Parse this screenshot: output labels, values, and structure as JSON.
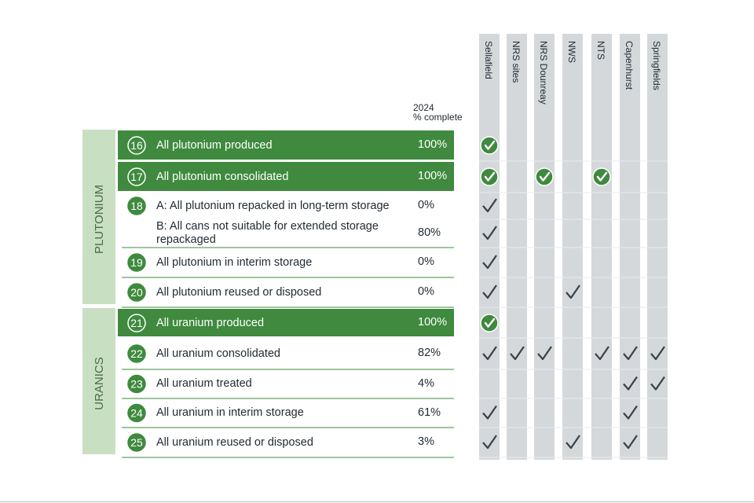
{
  "header": {
    "year": "2024",
    "measure": "% complete"
  },
  "sites": [
    "Sellafield",
    "NRS sites",
    "NRS Dounreay",
    "NWS",
    "NTS",
    "Capenhurst",
    "Springfields"
  ],
  "groups": [
    {
      "label": "PLUTONIUM",
      "rows": [
        {
          "number": 16,
          "highlight": true,
          "items": [
            {
              "label": "All plutonium produced",
              "percent": "100%",
              "checks": [
                true,
                false,
                false,
                false,
                false,
                false,
                false
              ]
            }
          ]
        },
        {
          "number": 17,
          "highlight": true,
          "items": [
            {
              "label": "All plutonium consolidated",
              "percent": "100%",
              "checks": [
                true,
                false,
                true,
                false,
                true,
                false,
                false
              ]
            }
          ]
        },
        {
          "number": 18,
          "highlight": false,
          "items": [
            {
              "label": "A: All plutonium repacked in long-term storage",
              "percent": "0%",
              "checks": [
                true,
                false,
                false,
                false,
                false,
                false,
                false
              ]
            },
            {
              "label": "B: All cans not suitable for extended storage repackaged",
              "percent": "80%",
              "checks": [
                true,
                false,
                false,
                false,
                false,
                false,
                false
              ]
            }
          ]
        },
        {
          "number": 19,
          "highlight": false,
          "items": [
            {
              "label": "All plutonium in interim storage",
              "percent": "0%",
              "checks": [
                true,
                false,
                false,
                false,
                false,
                false,
                false
              ]
            }
          ]
        },
        {
          "number": 20,
          "highlight": false,
          "items": [
            {
              "label": "All plutonium reused or disposed",
              "percent": "0%",
              "checks": [
                true,
                false,
                false,
                true,
                false,
                false,
                false
              ]
            }
          ]
        }
      ]
    },
    {
      "label": "URANICS",
      "rows": [
        {
          "number": 21,
          "highlight": true,
          "items": [
            {
              "label": "All uranium produced",
              "percent": "100%",
              "checks": [
                true,
                false,
                false,
                false,
                false,
                false,
                false
              ]
            }
          ]
        },
        {
          "number": 22,
          "highlight": false,
          "items": [
            {
              "label": "All uranium consolidated",
              "percent": "82%",
              "checks": [
                true,
                true,
                true,
                false,
                true,
                true,
                true
              ]
            }
          ]
        },
        {
          "number": 23,
          "highlight": false,
          "items": [
            {
              "label": "All uranium treated",
              "percent": "4%",
              "checks": [
                false,
                false,
                false,
                false,
                false,
                true,
                true
              ]
            }
          ]
        },
        {
          "number": 24,
          "highlight": false,
          "items": [
            {
              "label": "All uranium in interim storage",
              "percent": "61%",
              "checks": [
                true,
                false,
                false,
                false,
                false,
                true,
                false
              ]
            }
          ]
        },
        {
          "number": 25,
          "highlight": false,
          "items": [
            {
              "label": "All uranium reused or disposed",
              "percent": "3%",
              "checks": [
                true,
                false,
                false,
                true,
                false,
                true,
                false
              ]
            }
          ]
        }
      ]
    }
  ]
}
